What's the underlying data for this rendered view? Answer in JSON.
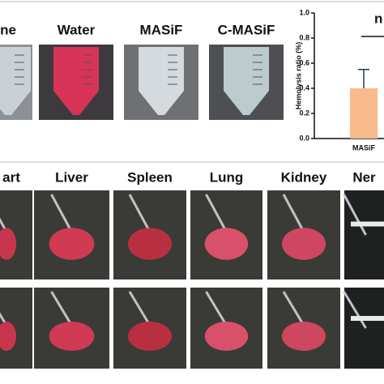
{
  "panels": {
    "tube_labels": [
      "ne",
      "Water",
      "MASiF",
      "C-MASiF"
    ],
    "organ_labels": [
      "art",
      "Liver",
      "Spleen",
      "Lung",
      "Kidney",
      "Ner"
    ]
  },
  "chart_data": {
    "type": "bar",
    "ylabel": "Hemolysis ratio (%)",
    "categories": [
      "MASiF"
    ],
    "values": [
      0.4
    ],
    "errors": [
      0.15
    ],
    "color": "#f8b98b",
    "annotation": "n",
    "ylim": [
      0,
      1.0
    ],
    "yticks": [
      {
        "value": 0,
        "label": "0.0"
      },
      {
        "value": 0.2,
        "label": "0.2"
      },
      {
        "value": 0.4,
        "label": "0.4"
      },
      {
        "value": 0.6,
        "label": "0.6"
      },
      {
        "value": 0.8,
        "label": "0.8"
      },
      {
        "value": 1.0,
        "label": "1.0"
      }
    ]
  }
}
